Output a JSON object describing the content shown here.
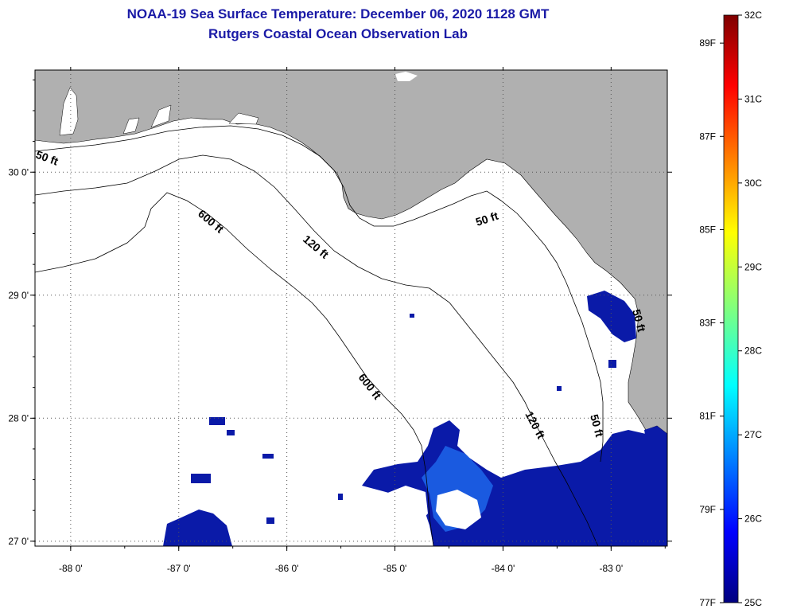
{
  "title": {
    "line1": "NOAA-19 Sea Surface Temperature:  December 06, 2020 1128 GMT",
    "line2": "Rutgers Coastal Ocean Observation Lab"
  },
  "map": {
    "lon_range": [
      -88.33,
      -82.48
    ],
    "lat_range": [
      26.96,
      30.83
    ],
    "lon_ticks": [
      {
        "value": -88,
        "label": "-88 0'"
      },
      {
        "value": -87,
        "label": "-87 0'"
      },
      {
        "value": -86,
        "label": "-86 0'"
      },
      {
        "value": -85,
        "label": "-85 0'"
      },
      {
        "value": -84,
        "label": "-84 0'"
      },
      {
        "value": -83,
        "label": "-83 0'"
      }
    ],
    "lat_ticks": [
      {
        "value": 30,
        "label": "30 0'"
      },
      {
        "value": 29,
        "label": "29 0'"
      },
      {
        "value": 28,
        "label": "28 0'"
      },
      {
        "value": 27,
        "label": "27 0'"
      }
    ],
    "contour_labels": [
      {
        "text": "50 ft"
      },
      {
        "text": "600 ft"
      },
      {
        "text": "120 ft"
      },
      {
        "text": "50 ft"
      },
      {
        "text": "600 ft"
      },
      {
        "text": "120 ft"
      },
      {
        "text": "50 ft"
      },
      {
        "text": "50 ft"
      }
    ],
    "colors": {
      "land": "#b0b0b0",
      "cloud": "#ffffff",
      "water_sst": "#0a1aa8",
      "water_sst_light": "#1a5ae0"
    }
  },
  "colorbar": {
    "min_c": 25,
    "max_c": 32,
    "celsius": [
      {
        "value": 32,
        "label": "32C"
      },
      {
        "value": 31,
        "label": "31C"
      },
      {
        "value": 30,
        "label": "30C"
      },
      {
        "value": 29,
        "label": "29C"
      },
      {
        "value": 28,
        "label": "28C"
      },
      {
        "value": 27,
        "label": "27C"
      },
      {
        "value": 26,
        "label": "26C"
      },
      {
        "value": 25,
        "label": "25C"
      }
    ],
    "fahrenheit": [
      {
        "value": 89,
        "label": "89F"
      },
      {
        "value": 87,
        "label": "87F"
      },
      {
        "value": 85,
        "label": "85F"
      },
      {
        "value": 83,
        "label": "83F"
      },
      {
        "value": 81,
        "label": "81F"
      },
      {
        "value": 79,
        "label": "79F"
      },
      {
        "value": 77,
        "label": "77F"
      }
    ]
  }
}
